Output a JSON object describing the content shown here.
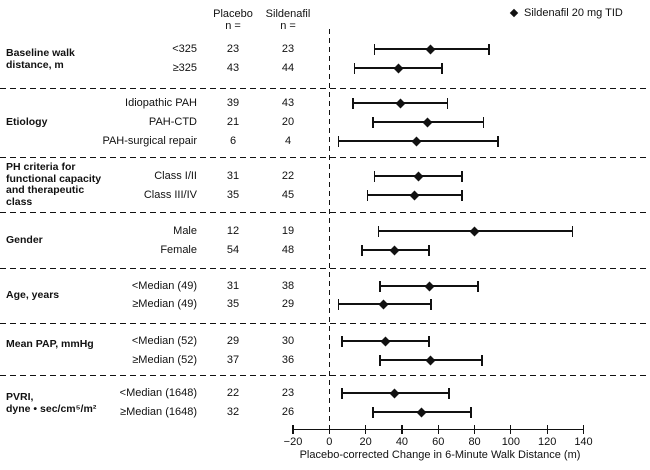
{
  "header": {
    "placebo_line1": "Placebo",
    "placebo_line2": "n =",
    "sildenafil_line1": "Sildenafil",
    "sildenafil_line2": "n =",
    "legend_marker": "diamond",
    "legend_label": "Sildenafil 20 mg TID"
  },
  "colors": {
    "ink": "#111111",
    "background": "#ffffff"
  },
  "chart_data": {
    "type": "forest",
    "title": "",
    "xlabel": "Placebo-corrected Change in 6-Minute Walk Distance (m)",
    "xlim": [
      -20,
      140
    ],
    "x_ticks": [
      -20,
      0,
      20,
      40,
      60,
      80,
      100,
      120,
      140
    ],
    "zero_reference_line": 0,
    "legend": [
      "Sildenafil 20 mg TID"
    ],
    "columns": [
      "Placebo n",
      "Sildenafil n"
    ],
    "groups": [
      {
        "label_lines": [
          "Baseline walk",
          "distance, m"
        ],
        "rows": [
          {
            "subgroup": "<325",
            "placebo_n": 23,
            "sildenafil_n": 23,
            "estimate": 56,
            "ci_low": 25,
            "ci_high": 88
          },
          {
            "subgroup": "≥325",
            "placebo_n": 43,
            "sildenafil_n": 44,
            "estimate": 38,
            "ci_low": 14,
            "ci_high": 62
          }
        ]
      },
      {
        "label_lines": [
          "Etiology"
        ],
        "rows": [
          {
            "subgroup": "Idiopathic PAH",
            "placebo_n": 39,
            "sildenafil_n": 43,
            "estimate": 39,
            "ci_low": 13,
            "ci_high": 65
          },
          {
            "subgroup": "PAH-CTD",
            "placebo_n": 21,
            "sildenafil_n": 20,
            "estimate": 54,
            "ci_low": 24,
            "ci_high": 85
          },
          {
            "subgroup": "PAH-surgical repair",
            "placebo_n": 6,
            "sildenafil_n": 4,
            "estimate": 48,
            "ci_low": 5,
            "ci_high": 93
          }
        ]
      },
      {
        "label_lines": [
          "PH criteria for",
          "functional capacity",
          "and therapeutic",
          "class"
        ],
        "rows": [
          {
            "subgroup": "Class I/II",
            "placebo_n": 31,
            "sildenafil_n": 22,
            "estimate": 49,
            "ci_low": 25,
            "ci_high": 73
          },
          {
            "subgroup": "Class III/IV",
            "placebo_n": 35,
            "sildenafil_n": 45,
            "estimate": 47,
            "ci_low": 21,
            "ci_high": 73
          }
        ]
      },
      {
        "label_lines": [
          "Gender"
        ],
        "rows": [
          {
            "subgroup": "Male",
            "placebo_n": 12,
            "sildenafil_n": 19,
            "estimate": 80,
            "ci_low": 27,
            "ci_high": 134
          },
          {
            "subgroup": "Female",
            "placebo_n": 54,
            "sildenafil_n": 48,
            "estimate": 36,
            "ci_low": 18,
            "ci_high": 55
          }
        ]
      },
      {
        "label_lines": [
          "Age, years"
        ],
        "rows": [
          {
            "subgroup": "<Median (49)",
            "placebo_n": 31,
            "sildenafil_n": 38,
            "estimate": 55,
            "ci_low": 28,
            "ci_high": 82
          },
          {
            "subgroup": "≥Median (49)",
            "placebo_n": 35,
            "sildenafil_n": 29,
            "estimate": 30,
            "ci_low": 5,
            "ci_high": 56
          }
        ]
      },
      {
        "label_lines": [
          "Mean PAP, mmHg"
        ],
        "rows": [
          {
            "subgroup": "<Median (52)",
            "placebo_n": 29,
            "sildenafil_n": 30,
            "estimate": 31,
            "ci_low": 7,
            "ci_high": 55
          },
          {
            "subgroup": "≥Median (52)",
            "placebo_n": 37,
            "sildenafil_n": 36,
            "estimate": 56,
            "ci_low": 28,
            "ci_high": 84
          }
        ]
      },
      {
        "label_lines": [
          "PVRI,",
          "dyne • sec/cm⁵/m²"
        ],
        "rows": [
          {
            "subgroup": "<Median (1648)",
            "placebo_n": 22,
            "sildenafil_n": 23,
            "estimate": 36,
            "ci_low": 7,
            "ci_high": 66
          },
          {
            "subgroup": "≥Median (1648)",
            "placebo_n": 32,
            "sildenafil_n": 26,
            "estimate": 51,
            "ci_low": 24,
            "ci_high": 78
          }
        ]
      }
    ]
  }
}
